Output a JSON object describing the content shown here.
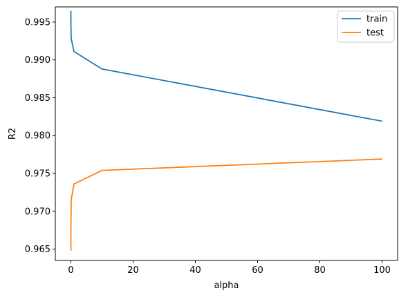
{
  "chart_data": {
    "type": "line",
    "title": "",
    "xlabel": "alpha",
    "ylabel": "R2",
    "xlim": [
      -5,
      105
    ],
    "ylim": [
      0.9635,
      0.997
    ],
    "xticks": [
      0,
      20,
      40,
      60,
      80,
      100
    ],
    "xtick_labels": [
      "0",
      "20",
      "40",
      "60",
      "80",
      "100"
    ],
    "yticks": [
      0.965,
      0.97,
      0.975,
      0.98,
      0.985,
      0.99,
      0.995
    ],
    "ytick_labels": [
      "0.965",
      "0.970",
      "0.975",
      "0.980",
      "0.985",
      "0.990",
      "0.995"
    ],
    "grid": false,
    "legend_position": "top-right",
    "series": [
      {
        "name": "train",
        "color": "#1f77b4",
        "x": [
          0.001,
          0.01,
          0.1,
          1,
          10,
          100
        ],
        "y": [
          0.9965,
          0.9945,
          0.9928,
          0.9911,
          0.9888,
          0.9819
        ]
      },
      {
        "name": "test",
        "color": "#ff7f0e",
        "x": [
          0.001,
          0.01,
          0.1,
          1,
          10,
          100
        ],
        "y": [
          0.9648,
          0.968,
          0.9715,
          0.9736,
          0.9754,
          0.9769
        ]
      }
    ]
  }
}
